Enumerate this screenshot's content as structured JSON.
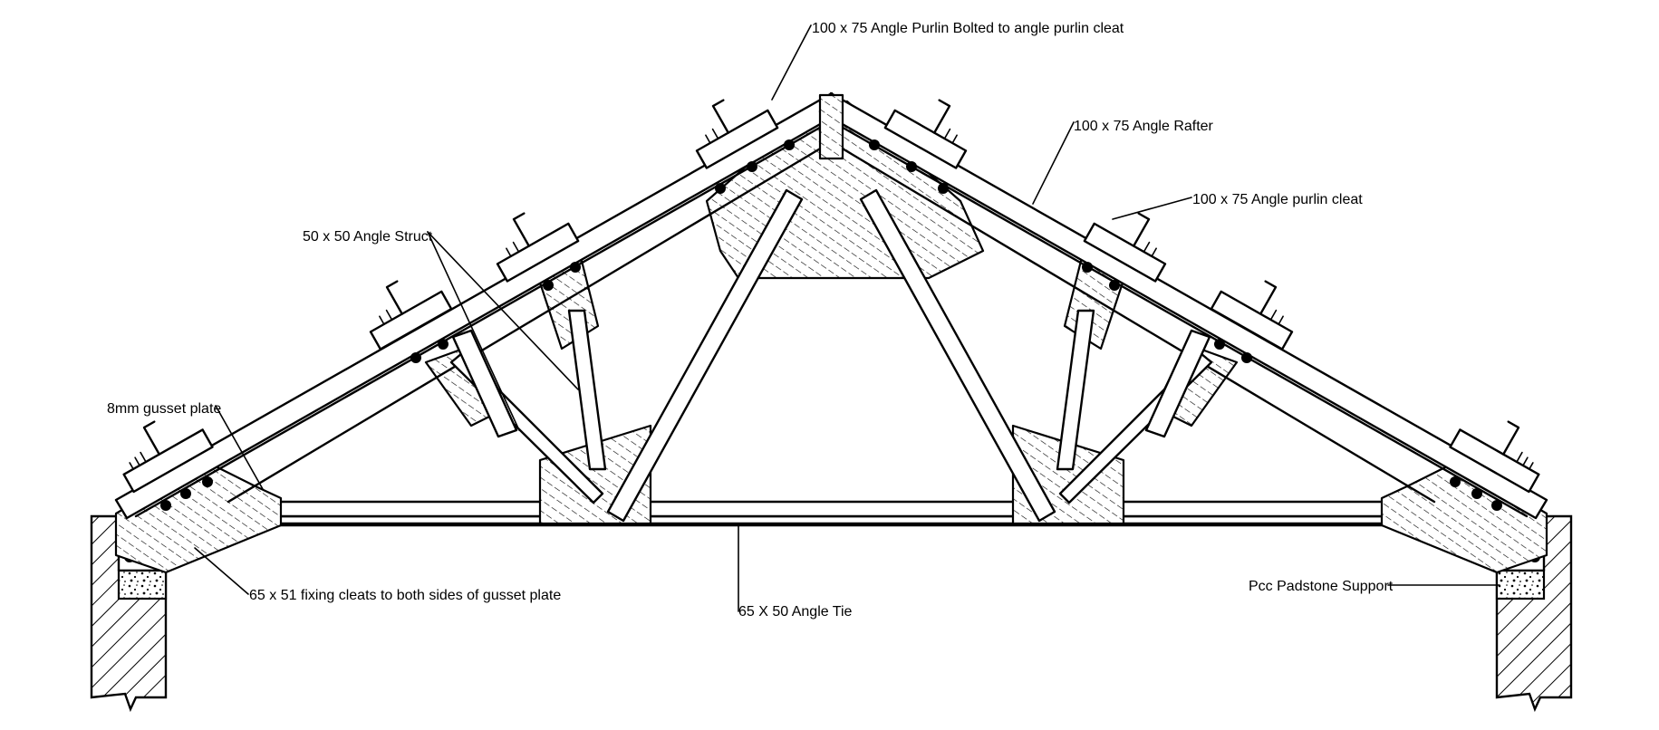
{
  "labels": {
    "purlin_bolted": "100 x 75 Angle Purlin Bolted to angle purlin cleat",
    "rafter": "100 x 75 Angle Rafter",
    "purlin_cleat": "100 x 75 Angle purlin cleat",
    "strut": "50 x 50 Angle Struct",
    "gusset": "8mm gusset plate",
    "fixing_cleats": "65 x 51 fixing cleats to both sides of gusset plate",
    "tie": "65 X 50 Angle Tie",
    "padstone": "Pcc Padstone Support"
  }
}
